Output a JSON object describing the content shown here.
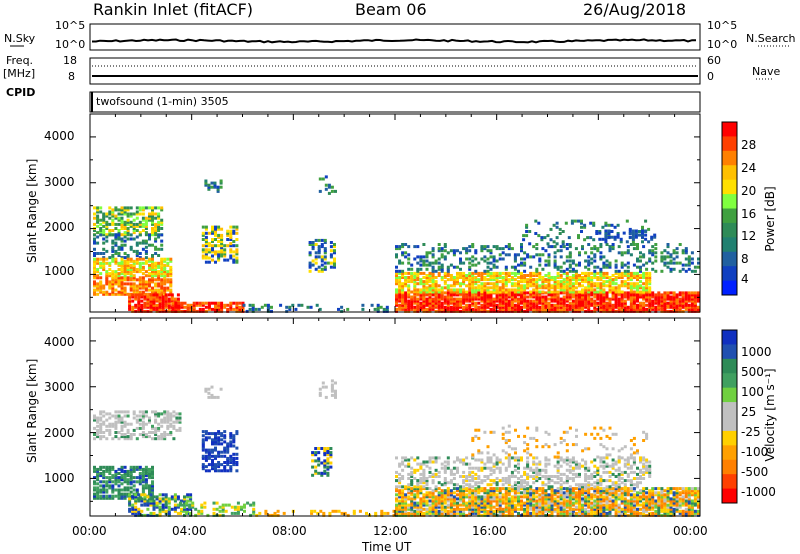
{
  "header": {
    "site": "Rankin Inlet (fitACF)",
    "beam": "Beam 06",
    "date": "26/Aug/2018"
  },
  "top_panels": {
    "nsky_label": "N.Sky",
    "nsearch_label": "N.Search",
    "nsky_ticks": [
      "10^5",
      "10^0"
    ],
    "nsky_right_ticks": [
      "10^5",
      "10^0"
    ],
    "freq_label": "Freq.",
    "freq_unit": "[MHz]",
    "freq_ticks": [
      "18",
      "8"
    ],
    "nave_label": "Nave",
    "nave_ticks": [
      "60",
      "0"
    ],
    "cpid_label": "CPID",
    "cpid_value": "twofsound (1-min) 3505"
  },
  "chart_data": [
    {
      "type": "heatmap",
      "panel": "power",
      "ylabel": "Slant Range [km]",
      "y_ticks": [
        "4000",
        "3000",
        "2000",
        "1000"
      ],
      "ylim": [
        180,
        4500
      ],
      "xlim": [
        "00:00",
        "24:00"
      ],
      "colorbar_label": "Power [dB]",
      "colorbar_ticks": [
        "28",
        "24",
        "20",
        "16",
        "12",
        "8",
        "4"
      ],
      "colorbar_colors": [
        "#ff0000",
        "#ff4000",
        "#ff8000",
        "#ffc000",
        "#ffe000",
        "#80ff40",
        "#40a040",
        "#2e8b57",
        "#208070",
        "#2060a0",
        "#1040c0",
        "#0020ff"
      ],
      "regions": [
        {
          "t0": 0.0,
          "t1": 2.8,
          "r0": 180,
          "r1": 2500,
          "level": "mixed"
        },
        {
          "t0": 3.0,
          "t1": 6.0,
          "r0": 180,
          "r1": 600,
          "level": "high"
        },
        {
          "t0": 12.0,
          "t1": 24.0,
          "r0": 180,
          "r1": 1600,
          "level": "high"
        }
      ]
    },
    {
      "type": "heatmap",
      "panel": "velocity",
      "ylabel": "Slant Range [km]",
      "y_ticks": [
        "4000",
        "3000",
        "2000",
        "1000"
      ],
      "ylim": [
        180,
        4500
      ],
      "xlim": [
        "00:00",
        "24:00"
      ],
      "xlabel": "Time UT",
      "x_ticks": [
        "00:00",
        "04:00",
        "08:00",
        "12:00",
        "16:00",
        "20:00",
        "00:00"
      ],
      "colorbar_label": "Velocity [m s⁻¹]",
      "colorbar_ticks": [
        "1000",
        "500",
        "100",
        "25",
        "-25",
        "-100",
        "-500",
        "-1000"
      ],
      "colorbar_colors": [
        "#1030c0",
        "#2050b0",
        "#2e8b57",
        "#40a060",
        "#70d040",
        "#c0c0c0",
        "#c0c0c0",
        "#ffd000",
        "#ffa000",
        "#ff8000",
        "#ff4000",
        "#ff0000"
      ]
    }
  ]
}
